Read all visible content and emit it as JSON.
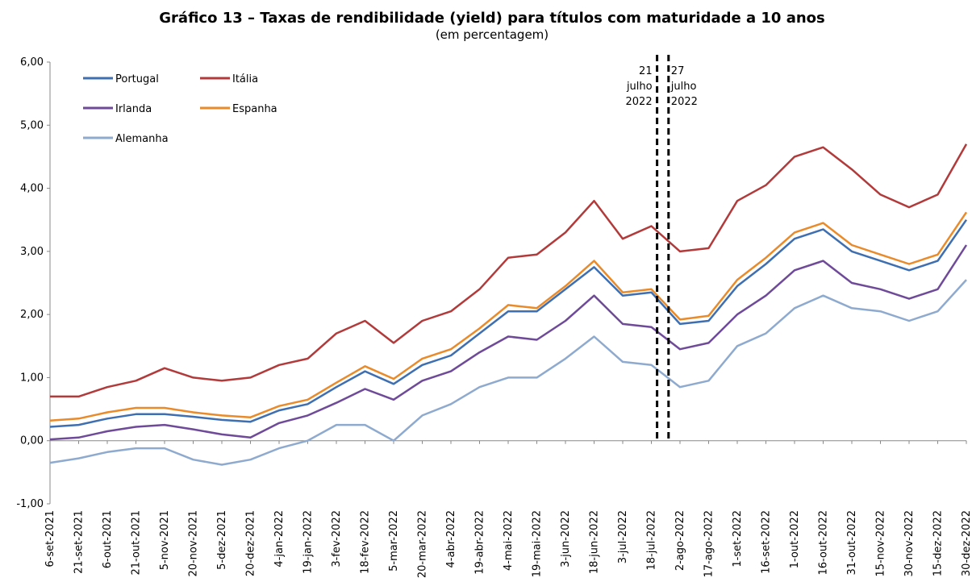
{
  "chart_data": {
    "type": "line",
    "title": "Gráfico 13 – Taxas de rendibilidade (yield) para títulos com maturidade a 10 anos",
    "subtitle": "(em percentagem)",
    "categories": [
      "6-set-2021",
      "21-set-2021",
      "6-out-2021",
      "21-out-2021",
      "5-nov-2021",
      "20-nov-2021",
      "5-dez-2021",
      "20-dez-2021",
      "4-jan-2022",
      "19-jan-2022",
      "3-fev-2022",
      "18-fev-2022",
      "5-mar-2022",
      "20-mar-2022",
      "4-abr-2022",
      "19-abr-2022",
      "4-mai-2022",
      "19-mai-2022",
      "3-jun-2022",
      "18-jun-2022",
      "3-jul-2022",
      "18-jul-2022",
      "2-ago-2022",
      "17-ago-2022",
      "1-set-2022",
      "16-set-2022",
      "1-out-2022",
      "16-out-2022",
      "31-out-2022",
      "15-nov-2022",
      "30-nov-2022",
      "15-dez-2022",
      "30-dez-2022"
    ],
    "series": [
      {
        "name": "Alemanha",
        "color": "#8eaacf",
        "values": [
          -0.35,
          -0.28,
          -0.18,
          -0.12,
          -0.12,
          -0.3,
          -0.38,
          -0.3,
          -0.12,
          0.0,
          0.25,
          0.25,
          0.0,
          0.4,
          0.58,
          0.85,
          1.0,
          1.0,
          1.3,
          1.65,
          1.25,
          1.2,
          0.85,
          0.95,
          1.5,
          1.7,
          2.1,
          2.3,
          2.1,
          2.05,
          1.9,
          2.05,
          2.55
        ]
      },
      {
        "name": "Irlanda",
        "color": "#6e4a99",
        "values": [
          0.02,
          0.05,
          0.15,
          0.22,
          0.25,
          0.18,
          0.1,
          0.05,
          0.28,
          0.4,
          0.6,
          0.82,
          0.65,
          0.95,
          1.1,
          1.4,
          1.65,
          1.6,
          1.9,
          2.3,
          1.85,
          1.8,
          1.45,
          1.55,
          2.0,
          2.3,
          2.7,
          2.85,
          2.5,
          2.4,
          2.25,
          2.4,
          3.1
        ]
      },
      {
        "name": "Itália",
        "color": "#b23a3a",
        "values": [
          0.7,
          0.7,
          0.85,
          0.95,
          1.15,
          1.0,
          0.95,
          1.0,
          1.2,
          1.3,
          1.7,
          1.9,
          1.55,
          1.9,
          2.05,
          2.4,
          2.9,
          2.95,
          3.3,
          3.8,
          3.2,
          3.4,
          3.0,
          3.05,
          3.8,
          4.05,
          4.5,
          4.65,
          4.3,
          3.9,
          3.7,
          3.9,
          4.7
        ]
      },
      {
        "name": "Espanha",
        "color": "#e98b2a",
        "values": [
          0.32,
          0.35,
          0.45,
          0.52,
          0.52,
          0.45,
          0.4,
          0.37,
          0.55,
          0.65,
          0.92,
          1.18,
          0.98,
          1.3,
          1.45,
          1.78,
          2.15,
          2.1,
          2.45,
          2.85,
          2.35,
          2.4,
          1.92,
          1.98,
          2.55,
          2.9,
          3.3,
          3.45,
          3.1,
          2.95,
          2.8,
          2.95,
          3.62
        ]
      },
      {
        "name": "Portugal",
        "color": "#3e6fb0",
        "values": [
          0.22,
          0.25,
          0.35,
          0.42,
          0.42,
          0.38,
          0.33,
          0.3,
          0.48,
          0.58,
          0.85,
          1.1,
          0.9,
          1.2,
          1.35,
          1.7,
          2.05,
          2.05,
          2.4,
          2.75,
          2.3,
          2.35,
          1.85,
          1.9,
          2.45,
          2.8,
          3.2,
          3.35,
          3.0,
          2.85,
          2.7,
          2.85,
          3.5
        ]
      }
    ],
    "legend": [
      "Portugal",
      "Itália",
      "Irlanda",
      "Espanha",
      "Alemanha"
    ],
    "ylim": [
      -1,
      6
    ],
    "yticks": [
      {
        "value": -1,
        "label": "-1,00"
      },
      {
        "value": 0,
        "label": "0,00"
      },
      {
        "value": 1,
        "label": "1,00"
      },
      {
        "value": 2,
        "label": "2,00"
      },
      {
        "value": 3,
        "label": "3,00"
      },
      {
        "value": 4,
        "label": "4,00"
      },
      {
        "value": 5,
        "label": "5,00"
      },
      {
        "value": 6,
        "label": "6,00"
      }
    ],
    "annotations": [
      {
        "lines": [
          "21",
          "julho",
          "2022"
        ]
      },
      {
        "lines": [
          "27",
          "julho",
          "2022"
        ]
      }
    ]
  }
}
